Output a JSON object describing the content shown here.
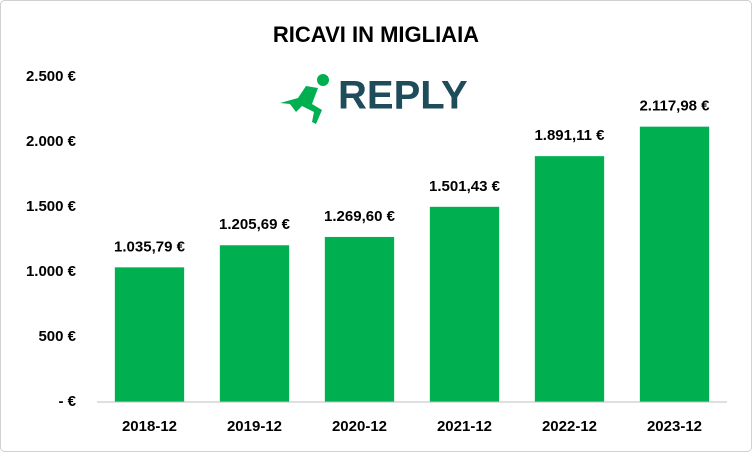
{
  "chart_data": {
    "type": "bar",
    "title": "RICAVI IN MIGLIAIA",
    "logo_text": "REPLY",
    "categories": [
      "2018-12",
      "2019-12",
      "2020-12",
      "2021-12",
      "2022-12",
      "2023-12"
    ],
    "values": [
      1035.79,
      1205.69,
      1269.6,
      1501.43,
      1891.11,
      2117.98
    ],
    "value_labels": [
      "1.035,79 €",
      "1.205,69 €",
      "1.269,60 €",
      "1.501,43 €",
      "1.891,11 €",
      "2.117,98 €"
    ],
    "color": "#00b050",
    "ylim": [
      0,
      2500
    ],
    "yticks": [
      {
        "value": 0,
        "label": "- €"
      },
      {
        "value": 500,
        "label": "500 €"
      },
      {
        "value": 1000,
        "label": "1.000 €"
      },
      {
        "value": 1500,
        "label": "1.500 €"
      },
      {
        "value": 2000,
        "label": "2.000 €"
      },
      {
        "value": 2500,
        "label": "2.500 €"
      }
    ],
    "grid": false
  }
}
